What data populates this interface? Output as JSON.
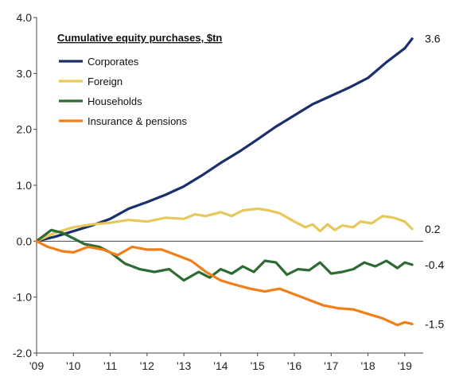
{
  "chart_data": {
    "type": "line",
    "legend_title": "Cumulative equity purchases, $tn",
    "legend_position": "top-left",
    "grid": false,
    "x_tick_labels": [
      "'09",
      "'10",
      "'11",
      "'12",
      "'13",
      "'14",
      "'15",
      "'16",
      "'17",
      "'18",
      "'19"
    ],
    "x_ticks": [
      2009,
      2010,
      2011,
      2012,
      2013,
      2014,
      2015,
      2016,
      2017,
      2018,
      2019
    ],
    "xlim": [
      2009,
      2019.5
    ],
    "y_tick_labels": [
      "4.0",
      "3.0",
      "2.0",
      "1.0",
      "0.0",
      "-1.0",
      "-2.0"
    ],
    "y_ticks": [
      4,
      3,
      2,
      1,
      0,
      -1,
      -2
    ],
    "ylim": [
      -2,
      4
    ],
    "series": [
      {
        "name": "Corporates",
        "color": "#1a2f6b",
        "end_label": "3.6",
        "points": [
          [
            2009.0,
            0.0
          ],
          [
            2009.5,
            0.08
          ],
          [
            2010.0,
            0.18
          ],
          [
            2010.5,
            0.28
          ],
          [
            2011.0,
            0.4
          ],
          [
            2011.5,
            0.58
          ],
          [
            2012.0,
            0.7
          ],
          [
            2012.5,
            0.83
          ],
          [
            2013.0,
            0.98
          ],
          [
            2013.5,
            1.18
          ],
          [
            2014.0,
            1.4
          ],
          [
            2014.5,
            1.6
          ],
          [
            2015.0,
            1.82
          ],
          [
            2015.5,
            2.05
          ],
          [
            2016.0,
            2.25
          ],
          [
            2016.5,
            2.45
          ],
          [
            2017.0,
            2.6
          ],
          [
            2017.5,
            2.75
          ],
          [
            2018.0,
            2.92
          ],
          [
            2018.5,
            3.2
          ],
          [
            2019.0,
            3.45
          ],
          [
            2019.2,
            3.62
          ]
        ]
      },
      {
        "name": "Foreign",
        "color": "#e6c85c",
        "end_label": "0.2",
        "points": [
          [
            2009.0,
            0.0
          ],
          [
            2009.5,
            0.15
          ],
          [
            2010.0,
            0.25
          ],
          [
            2010.5,
            0.3
          ],
          [
            2011.0,
            0.33
          ],
          [
            2011.5,
            0.38
          ],
          [
            2012.0,
            0.35
          ],
          [
            2012.5,
            0.42
          ],
          [
            2013.0,
            0.4
          ],
          [
            2013.3,
            0.48
          ],
          [
            2013.6,
            0.45
          ],
          [
            2014.0,
            0.52
          ],
          [
            2014.3,
            0.45
          ],
          [
            2014.6,
            0.55
          ],
          [
            2015.0,
            0.58
          ],
          [
            2015.3,
            0.55
          ],
          [
            2015.6,
            0.5
          ],
          [
            2016.0,
            0.35
          ],
          [
            2016.3,
            0.25
          ],
          [
            2016.5,
            0.3
          ],
          [
            2016.7,
            0.18
          ],
          [
            2016.9,
            0.3
          ],
          [
            2017.1,
            0.2
          ],
          [
            2017.3,
            0.28
          ],
          [
            2017.6,
            0.25
          ],
          [
            2017.8,
            0.35
          ],
          [
            2018.1,
            0.32
          ],
          [
            2018.4,
            0.45
          ],
          [
            2018.7,
            0.42
          ],
          [
            2019.0,
            0.35
          ],
          [
            2019.2,
            0.22
          ]
        ]
      },
      {
        "name": "Households",
        "color": "#2e6b33",
        "end_label": "-0.4",
        "points": [
          [
            2009.0,
            0.0
          ],
          [
            2009.4,
            0.2
          ],
          [
            2009.7,
            0.15
          ],
          [
            2010.0,
            0.05
          ],
          [
            2010.3,
            -0.05
          ],
          [
            2010.7,
            -0.1
          ],
          [
            2011.0,
            -0.2
          ],
          [
            2011.4,
            -0.4
          ],
          [
            2011.8,
            -0.5
          ],
          [
            2012.2,
            -0.55
          ],
          [
            2012.6,
            -0.5
          ],
          [
            2013.0,
            -0.7
          ],
          [
            2013.4,
            -0.55
          ],
          [
            2013.7,
            -0.65
          ],
          [
            2014.0,
            -0.5
          ],
          [
            2014.3,
            -0.58
          ],
          [
            2014.6,
            -0.45
          ],
          [
            2014.9,
            -0.55
          ],
          [
            2015.2,
            -0.35
          ],
          [
            2015.5,
            -0.38
          ],
          [
            2015.8,
            -0.6
          ],
          [
            2016.1,
            -0.5
          ],
          [
            2016.4,
            -0.52
          ],
          [
            2016.7,
            -0.38
          ],
          [
            2017.0,
            -0.58
          ],
          [
            2017.3,
            -0.55
          ],
          [
            2017.6,
            -0.5
          ],
          [
            2017.9,
            -0.38
          ],
          [
            2018.2,
            -0.45
          ],
          [
            2018.5,
            -0.35
          ],
          [
            2018.8,
            -0.48
          ],
          [
            2019.0,
            -0.38
          ],
          [
            2019.2,
            -0.42
          ]
        ]
      },
      {
        "name": "Insurance & pensions",
        "color": "#f07f1a",
        "end_label": "-1.5",
        "points": [
          [
            2009.0,
            0.0
          ],
          [
            2009.3,
            -0.1
          ],
          [
            2009.7,
            -0.18
          ],
          [
            2010.0,
            -0.2
          ],
          [
            2010.4,
            -0.1
          ],
          [
            2010.8,
            -0.15
          ],
          [
            2011.2,
            -0.25
          ],
          [
            2011.6,
            -0.1
          ],
          [
            2012.0,
            -0.15
          ],
          [
            2012.4,
            -0.15
          ],
          [
            2012.8,
            -0.25
          ],
          [
            2013.2,
            -0.35
          ],
          [
            2013.6,
            -0.55
          ],
          [
            2014.0,
            -0.7
          ],
          [
            2014.4,
            -0.78
          ],
          [
            2014.8,
            -0.85
          ],
          [
            2015.2,
            -0.9
          ],
          [
            2015.6,
            -0.85
          ],
          [
            2016.0,
            -0.95
          ],
          [
            2016.4,
            -1.05
          ],
          [
            2016.8,
            -1.15
          ],
          [
            2017.2,
            -1.2
          ],
          [
            2017.6,
            -1.22
          ],
          [
            2018.0,
            -1.3
          ],
          [
            2018.4,
            -1.38
          ],
          [
            2018.8,
            -1.5
          ],
          [
            2019.0,
            -1.45
          ],
          [
            2019.2,
            -1.48
          ]
        ]
      }
    ]
  }
}
